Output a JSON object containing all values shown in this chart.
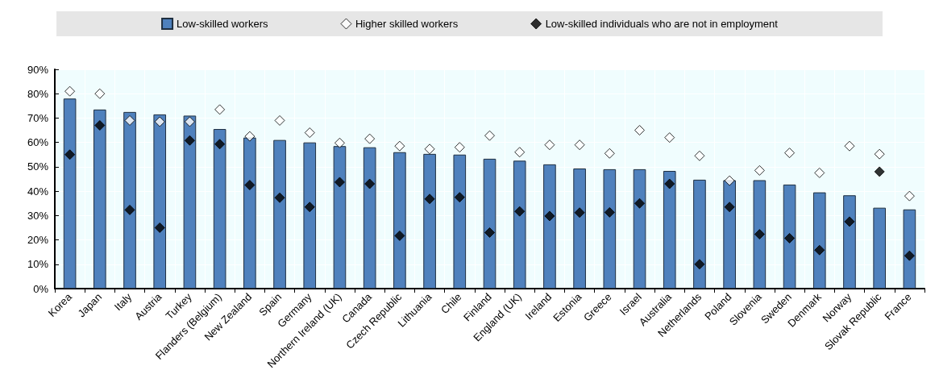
{
  "chart_data": {
    "type": "bar",
    "categories": [
      "Korea",
      "Japan",
      "Italy",
      "Austria",
      "Turkey",
      "Flanders (Belgium)",
      "New Zealand",
      "Spain",
      "Germany",
      "Northern Ireland (UK)",
      "Canada",
      "Czech Republic",
      "Lithuania",
      "Chile",
      "Finland",
      "England (UK)",
      "Ireland",
      "Estonia",
      "Greece",
      "Israel",
      "Australia",
      "Netherlands",
      "Poland",
      "Slovenia",
      "Sweden",
      "Denmark",
      "Norway",
      "Slovak Republic",
      "France"
    ],
    "series": [
      {
        "name": "Low-skilled workers",
        "color": "#4f81bd",
        "values": [
          78,
          73.5,
          72.5,
          71.5,
          71,
          65.5,
          62,
          61,
          60,
          58.5,
          58,
          56,
          55.3,
          55,
          53.3,
          52.5,
          51,
          49.3,
          49,
          49,
          48.3,
          44.7,
          44.5,
          44.5,
          42.7,
          39.5,
          38.3,
          33.2,
          32.5
        ]
      },
      {
        "name": "Higher skilled workers",
        "type": "scatter",
        "color": "#ffffff",
        "values": [
          81,
          80,
          69,
          68.5,
          68.5,
          73.5,
          62.5,
          69,
          64,
          59.8,
          61.5,
          58.5,
          57.3,
          58,
          62.8,
          56,
          59,
          59,
          55.5,
          65,
          62,
          54.5,
          44.3,
          48.5,
          55.7,
          47.5,
          58.5,
          55.2,
          38
        ]
      },
      {
        "name": "Low-skilled individuals who are not in employment",
        "type": "scatter",
        "color": "#000000",
        "values": [
          55,
          67,
          32.3,
          25,
          60.8,
          59.3,
          42.5,
          37.3,
          33.5,
          43.7,
          43,
          21.7,
          36.8,
          37.5,
          23,
          31.7,
          29.8,
          31.2,
          31.3,
          35,
          43,
          10,
          33.5,
          22.3,
          20.7,
          15.8,
          27.5,
          48,
          13.5
        ]
      }
    ],
    "ylim": [
      0,
      90
    ],
    "yticks": [
      {
        "value": 0,
        "label": "0%"
      },
      {
        "value": 10,
        "label": "10%"
      },
      {
        "value": 20,
        "label": "20%"
      },
      {
        "value": 30,
        "label": "30%"
      },
      {
        "value": 40,
        "label": "40%"
      },
      {
        "value": 50,
        "label": "50%"
      },
      {
        "value": 60,
        "label": "60%"
      },
      {
        "value": 70,
        "label": "70%"
      },
      {
        "value": 80,
        "label": "80%"
      },
      {
        "value": 90,
        "label": "90%"
      }
    ],
    "grid": true,
    "legend": "top",
    "marker": "diamond"
  }
}
